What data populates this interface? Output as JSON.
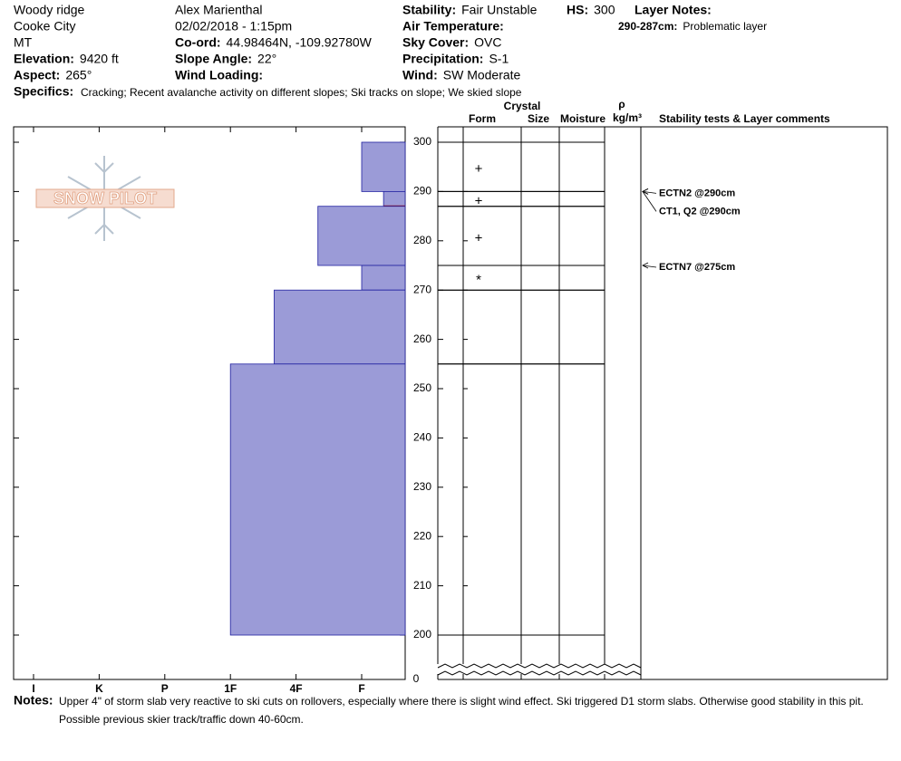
{
  "header": {
    "columns": [
      [
        {
          "value": "Woody ridge"
        },
        {
          "value": "Cooke City"
        },
        {
          "value": "MT"
        },
        {
          "label": "Elevation:",
          "value": "9420 ft"
        },
        {
          "label": "Aspect:",
          "value": "265°"
        }
      ],
      [
        {
          "value": "Alex Marienthal"
        },
        {
          "value": "02/02/2018 - 1:15pm"
        },
        {
          "label": "Co-ord:",
          "value": "44.98464N, -109.92780W"
        },
        {
          "label": "Slope Angle:",
          "value": "22°"
        },
        {
          "label": "Wind Loading:"
        }
      ],
      [
        {
          "label": "Stability:",
          "value": "Fair Unstable"
        },
        {
          "label": "Air Temperature:"
        },
        {
          "label": "Sky Cover:",
          "value": "OVC"
        },
        {
          "label": "Precipitation:",
          "value": "S-1"
        },
        {
          "label": "Wind:",
          "value": "SW Moderate"
        }
      ],
      [
        {
          "label": "HS:",
          "value": "300"
        }
      ]
    ],
    "layer_notes": {
      "title": "Layer Notes:",
      "items": [
        {
          "label": "290-287cm:",
          "value": "Problematic layer"
        }
      ]
    },
    "specifics": {
      "label": "Specifics:",
      "value": "Cracking;  Recent avalanche activity on different slopes;  Ski tracks on slope;  We skied slope"
    }
  },
  "logo": "SNOW PILOT",
  "profile": {
    "columns": {
      "crystal": "Crystal",
      "form": "Form",
      "size": "Size",
      "moisture": "Moisture",
      "rho": "ρ",
      "density_unit": "kg/m³",
      "comments": "Stability tests & Layer comments"
    },
    "depth_ticks": [
      200,
      210,
      220,
      230,
      240,
      250,
      260,
      270,
      280,
      290,
      300
    ],
    "depth_zero": 0,
    "hardness_scale": [
      "I",
      "K",
      "P",
      "1F",
      "4F",
      "F"
    ],
    "layers": [
      {
        "top": 300,
        "bottom": 290,
        "hardness": "F",
        "form": "+"
      },
      {
        "top": 290,
        "bottom": 287,
        "hardness": "F-",
        "form": "+",
        "concern": true
      },
      {
        "top": 287,
        "bottom": 275,
        "hardness": "4F-",
        "form": "+"
      },
      {
        "top": 275,
        "bottom": 270,
        "hardness": "F",
        "form": "*"
      },
      {
        "top": 270,
        "bottom": 255,
        "hardness": "4F+"
      },
      {
        "top": 255,
        "bottom": 200,
        "hardness": "1F"
      }
    ],
    "tests": [
      {
        "label": "ECTN2 @290cm",
        "depth": 290
      },
      {
        "label": "CT1, Q2 @290cm",
        "depth": 290
      },
      {
        "label": "ECTN7 @275cm",
        "depth": 275
      }
    ]
  },
  "notes": {
    "label": "Notes:",
    "lines": [
      "Upper 4\" of storm slab very reactive to ski cuts on rollovers, especially where there is slight wind effect. Ski triggered D1 storm slabs. Otherwise good stability in this pit.",
      "Possible previous skier track/traffic down 40-60cm."
    ]
  }
}
